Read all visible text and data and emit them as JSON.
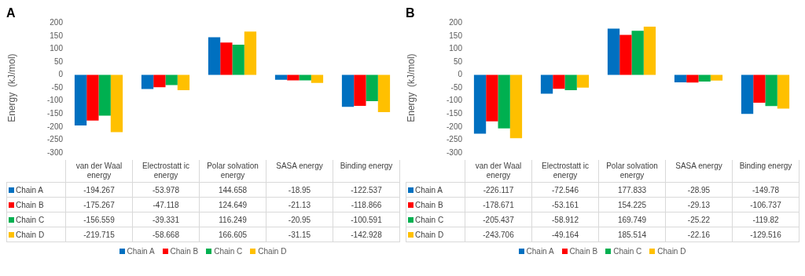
{
  "chart_data": [
    {
      "type": "bar",
      "title": "A",
      "ylabel": "Energy  (kJ/mol)",
      "categories": [
        "van der Waal energy",
        "Electrostatt ic energy",
        "Polar solvation energy",
        "SASA energy",
        "Binding energy"
      ],
      "ylim": [
        -300,
        200
      ],
      "yticks": [
        -300,
        -250,
        -200,
        -150,
        -100,
        -50,
        0,
        50,
        100,
        150,
        200
      ],
      "grid": false,
      "legend": "bottom",
      "data_labels": true,
      "series": [
        {
          "name": "Chain A",
          "color": "#0070c0",
          "values": [
            -194.267,
            -53.978,
            144.658,
            -18.95,
            -122.537
          ]
        },
        {
          "name": "Chain B",
          "color": "#ff0000",
          "values": [
            -175.267,
            -47.118,
            124.649,
            -21.13,
            -118.866
          ]
        },
        {
          "name": "Chain C",
          "color": "#00b050",
          "values": [
            -156.559,
            -39.331,
            116.249,
            -20.95,
            -100.591
          ]
        },
        {
          "name": "Chain D",
          "color": "#ffc000",
          "values": [
            -219.715,
            -58.668,
            166.605,
            -31.15,
            -142.928
          ]
        }
      ]
    },
    {
      "type": "bar",
      "title": "B",
      "ylabel": "Energy  (kJ/mol)",
      "categories": [
        "van der Waal energy",
        "Electrostatt ic energy",
        "Polar solvation energy",
        "SASA energy",
        "Binding energy"
      ],
      "ylim": [
        -300,
        200
      ],
      "yticks": [
        -300,
        -250,
        -200,
        -150,
        -100,
        -50,
        0,
        50,
        100,
        150,
        200
      ],
      "grid": false,
      "legend": "bottom",
      "data_labels": true,
      "series": [
        {
          "name": "Chain A",
          "color": "#0070c0",
          "values": [
            -226.117,
            -72.546,
            177.833,
            -28.95,
            -149.78
          ]
        },
        {
          "name": "Chain B",
          "color": "#ff0000",
          "values": [
            -178.671,
            -53.161,
            154.225,
            -29.13,
            -106.737
          ]
        },
        {
          "name": "Chain C",
          "color": "#00b050",
          "values": [
            -205.437,
            -58.912,
            169.749,
            -25.22,
            -119.82
          ]
        },
        {
          "name": "Chain D",
          "color": "#ffc000",
          "values": [
            -243.706,
            -49.164,
            185.514,
            -22.16,
            -129.516
          ]
        }
      ]
    }
  ]
}
